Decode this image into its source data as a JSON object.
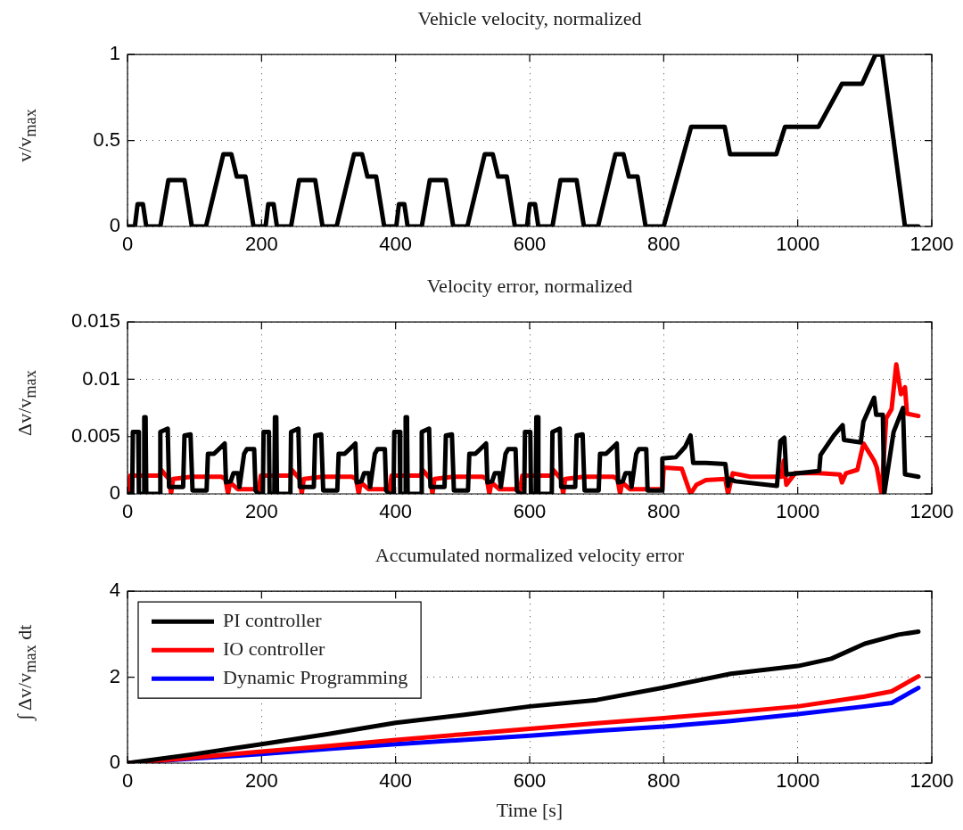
{
  "chart_data": [
    {
      "type": "line",
      "title": "Vehicle velocity, normalized",
      "ylabel": "v/v$_{max}$",
      "xlim": [
        0,
        1200
      ],
      "xticks": [
        0,
        200,
        400,
        600,
        800,
        1000,
        1200
      ],
      "ylim": [
        0,
        1
      ],
      "yticks": [
        0,
        0.5,
        1
      ],
      "grid": true,
      "legend": false,
      "marker": "none",
      "line_style": "solid",
      "series": [
        {
          "color": "#000000",
          "x": [
            0,
            11,
            15,
            23,
            28,
            49,
            61,
            85,
            96,
            117,
            143,
            155,
            163,
            176,
            188,
            195,
            206,
            210,
            218,
            223,
            244,
            256,
            280,
            291,
            312,
            338,
            350,
            358,
            371,
            383,
            390,
            401,
            405,
            413,
            418,
            439,
            451,
            475,
            486,
            507,
            533,
            545,
            553,
            566,
            578,
            585,
            596,
            600,
            608,
            613,
            634,
            646,
            670,
            681,
            702,
            728,
            740,
            748,
            761,
            773,
            800,
            841,
            891,
            899,
            968,
            981,
            1031,
            1066,
            1096,
            1116,
            1126,
            1160,
            1180
          ],
          "values": [
            0,
            0,
            0.13,
            0.13,
            0,
            0,
            0.27,
            0.27,
            0,
            0,
            0.42,
            0.42,
            0.29,
            0.29,
            0,
            0,
            0,
            0.13,
            0.13,
            0,
            0,
            0.27,
            0.27,
            0,
            0,
            0.42,
            0.42,
            0.29,
            0.29,
            0,
            0,
            0,
            0.13,
            0.13,
            0,
            0,
            0.27,
            0.27,
            0,
            0,
            0.42,
            0.42,
            0.29,
            0.29,
            0,
            0,
            0,
            0.13,
            0.13,
            0,
            0,
            0.27,
            0.27,
            0,
            0,
            0.42,
            0.42,
            0.29,
            0.29,
            0,
            0,
            0.58,
            0.58,
            0.42,
            0.42,
            0.58,
            0.58,
            0.83,
            0.83,
            1,
            1,
            0,
            0
          ]
        }
      ]
    },
    {
      "type": "line",
      "title": "Velocity error, normalized",
      "ylabel": "Δv/v$_{max}$",
      "xlim": [
        0,
        1200
      ],
      "xticks": [
        0,
        200,
        400,
        600,
        800,
        1000,
        1200
      ],
      "ylim": [
        0,
        0.015
      ],
      "yticks": [
        0,
        0.005,
        0.01,
        0.015
      ],
      "grid": true,
      "legend": false,
      "marker": "none",
      "line_style": "solid",
      "series": [
        {
          "color": "#000000",
          "x": [
            0,
            7,
            8,
            16,
            17,
            24,
            25,
            27,
            28,
            48,
            49,
            60,
            62,
            83,
            85,
            94,
            97,
            118,
            120,
            129,
            145,
            147,
            154,
            158,
            165,
            167,
            174,
            178,
            189,
            191,
            195,
            202,
            203,
            211,
            212,
            219,
            220,
            222,
            223,
            243,
            244,
            255,
            257,
            278,
            280,
            289,
            292,
            313,
            315,
            324,
            340,
            342,
            349,
            353,
            360,
            362,
            369,
            373,
            384,
            386,
            390,
            397,
            398,
            406,
            407,
            414,
            415,
            417,
            418,
            438,
            439,
            450,
            452,
            473,
            475,
            484,
            487,
            508,
            510,
            519,
            535,
            537,
            544,
            548,
            555,
            557,
            564,
            568,
            579,
            581,
            585,
            592,
            593,
            601,
            602,
            609,
            610,
            612,
            613,
            633,
            634,
            645,
            647,
            668,
            670,
            679,
            682,
            703,
            705,
            714,
            730,
            732,
            739,
            743,
            750,
            752,
            759,
            763,
            774,
            776,
            797,
            798,
            818,
            832,
            840,
            844,
            863,
            892,
            896,
            898,
            907,
            969,
            974,
            980,
            983,
            1032,
            1034,
            1054,
            1067,
            1069,
            1094,
            1098,
            1114,
            1117,
            1127,
            1129,
            1143,
            1157,
            1160,
            1180
          ],
          "values": [
            0,
            0,
            0.0054,
            0.0054,
            0,
            0,
            0.0067,
            0.0067,
            0,
            0,
            0.0054,
            0.0057,
            0.0006,
            0.0006,
            0.0051,
            0.0052,
            0.0003,
            0.0003,
            0.0035,
            0.0035,
            0.0044,
            0.001,
            0.0011,
            0.0018,
            0.0018,
            0.0006,
            0.0035,
            0.0039,
            0.0039,
            0.0003,
            0,
            0,
            0.0054,
            0.0054,
            0,
            0,
            0.0067,
            0.0067,
            0,
            0,
            0.0054,
            0.0057,
            0.0006,
            0.0006,
            0.0051,
            0.0052,
            0.0003,
            0.0003,
            0.0035,
            0.0035,
            0.0044,
            0.001,
            0.0011,
            0.0018,
            0.0018,
            0.0006,
            0.0035,
            0.0039,
            0.0039,
            0.0003,
            0,
            0,
            0.0054,
            0.0054,
            0,
            0,
            0.0067,
            0.0067,
            0,
            0,
            0.0054,
            0.0057,
            0.0006,
            0.0006,
            0.0051,
            0.0052,
            0.0003,
            0.0003,
            0.0035,
            0.0035,
            0.0044,
            0.001,
            0.0011,
            0.0018,
            0.0018,
            0.0006,
            0.0035,
            0.0039,
            0.0039,
            0.0003,
            0,
            0,
            0.0054,
            0.0054,
            0,
            0,
            0.0067,
            0.0067,
            0,
            0,
            0.0054,
            0.0057,
            0.0006,
            0.0006,
            0.0051,
            0.0052,
            0.0003,
            0.0003,
            0.0035,
            0.0035,
            0.0044,
            0.001,
            0.0011,
            0.0018,
            0.0018,
            0.0006,
            0.0035,
            0.0039,
            0.0039,
            0.0003,
            0.0003,
            0.0031,
            0.0032,
            0.0041,
            0.0051,
            0.0027,
            0.0027,
            0.0026,
            0.0007,
            0.0013,
            0.0011,
            0.0007,
            0.0046,
            0.0049,
            0.0017,
            0.002,
            0.0034,
            0.0051,
            0.006,
            0.0047,
            0.0045,
            0.0063,
            0.0084,
            0.0069,
            0.0069,
            0,
            0.0054,
            0.0075,
            0.0017,
            0.0015
          ]
        },
        {
          "color": "#ff0000",
          "x": [
            0,
            4,
            48,
            50,
            62,
            65,
            68,
            96,
            140,
            146,
            150,
            153,
            165,
            193,
            195,
            199,
            243,
            245,
            257,
            260,
            263,
            291,
            335,
            341,
            345,
            348,
            360,
            388,
            390,
            394,
            438,
            440,
            452,
            455,
            458,
            486,
            530,
            536,
            540,
            543,
            555,
            583,
            585,
            589,
            633,
            635,
            647,
            650,
            653,
            681,
            725,
            731,
            735,
            738,
            750,
            778,
            798,
            800,
            827,
            840,
            849,
            863,
            892,
            896,
            903,
            929,
            976,
            979,
            983,
            996,
            1032,
            1063,
            1066,
            1072,
            1089,
            1098,
            1114,
            1118,
            1125,
            1132,
            1140,
            1147,
            1154,
            1160,
            1163,
            1180
          ],
          "values": [
            0,
            0.0016,
            0.0016,
            0.0021,
            0.0013,
            0,
            0.0013,
            0.0015,
            0.0015,
            0.0013,
            0,
            0.001,
            0.0004,
            0.0004,
            0,
            0.0016,
            0.0016,
            0.0021,
            0.0013,
            0,
            0.0013,
            0.0015,
            0.0015,
            0.0013,
            0,
            0.001,
            0.0004,
            0.0004,
            0,
            0.0016,
            0.0016,
            0.0021,
            0.0013,
            0,
            0.0013,
            0.0015,
            0.0015,
            0.0013,
            0,
            0.001,
            0.0004,
            0.0004,
            0,
            0.0016,
            0.0016,
            0.0021,
            0.0013,
            0,
            0.0013,
            0.0015,
            0.0015,
            0.0013,
            0,
            0.001,
            0.0004,
            0.0004,
            0.0004,
            0.0023,
            0.0022,
            0,
            0.0008,
            0.0012,
            0.0013,
            0,
            0.0018,
            0.0015,
            0.0015,
            0.0029,
            0.0008,
            0.0018,
            0.0018,
            0.0017,
            0.001,
            0.0018,
            0.0021,
            0.0044,
            0.0029,
            0.0023,
            0,
            0.0066,
            0.0074,
            0.0113,
            0.0087,
            0.0093,
            0.007,
            0.0068
          ]
        }
      ]
    },
    {
      "type": "line",
      "title": "Accumulated normalized velocity error",
      "xlabel": "Time [s]",
      "ylabel": "∫ Δv/v$_{max}$ dt",
      "xlim": [
        0,
        1200
      ],
      "xticks": [
        0,
        200,
        400,
        600,
        800,
        1000,
        1200
      ],
      "ylim": [
        0,
        4
      ],
      "yticks": [
        0,
        2,
        4
      ],
      "grid": true,
      "legend": "top left",
      "marker": "none",
      "line_style": "solid",
      "series": [
        {
          "name": "PI controller",
          "color": "#000000",
          "x": [
            0,
            100,
            200,
            300,
            400,
            500,
            600,
            700,
            800,
            900,
            1000,
            1050,
            1100,
            1150,
            1180
          ],
          "values": [
            0,
            0.21,
            0.44,
            0.68,
            0.94,
            1.12,
            1.32,
            1.47,
            1.76,
            2.08,
            2.26,
            2.43,
            2.78,
            2.99,
            3.06
          ]
        },
        {
          "name": "IO controller",
          "color": "#ff0000",
          "x": [
            0,
            100,
            200,
            300,
            400,
            500,
            600,
            700,
            800,
            900,
            1000,
            1100,
            1140,
            1180
          ],
          "values": [
            0,
            0.13,
            0.27,
            0.4,
            0.54,
            0.67,
            0.8,
            0.93,
            1.05,
            1.18,
            1.32,
            1.55,
            1.67,
            2.02
          ]
        },
        {
          "name": "Dynamic Programming",
          "color": "#0000ff",
          "x": [
            0,
            100,
            200,
            300,
            400,
            500,
            600,
            700,
            800,
            900,
            1000,
            1100,
            1140,
            1180
          ],
          "values": [
            0,
            0.11,
            0.21,
            0.33,
            0.44,
            0.54,
            0.64,
            0.75,
            0.85,
            0.98,
            1.14,
            1.32,
            1.4,
            1.75
          ]
        }
      ]
    }
  ]
}
